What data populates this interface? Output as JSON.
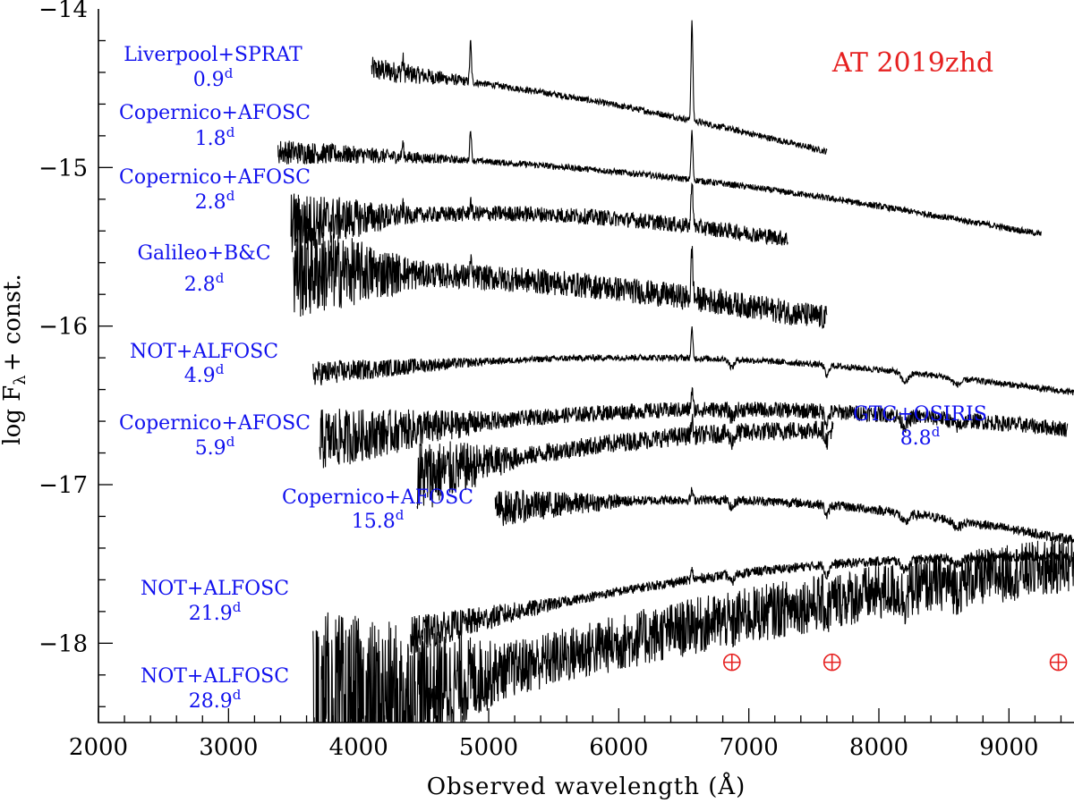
{
  "chart_data": {
    "type": "line",
    "title": "AT 2019zhd",
    "xlabel": "Observed wavelength (Å)",
    "ylabel": {
      "main": "log F",
      "sub": "λ",
      "tail": "+ const."
    },
    "xlim": [
      2000,
      9500
    ],
    "ylim": [
      -18.5,
      -14
    ],
    "x_ticks": [
      "2000",
      "3000",
      "4000",
      "5000",
      "6000",
      "7000",
      "8000",
      "9000"
    ],
    "x_tick_values": [
      2000,
      3000,
      4000,
      5000,
      6000,
      7000,
      8000,
      9000
    ],
    "y_ticks": [
      "−14",
      "−15",
      "−16",
      "−17",
      "−18"
    ],
    "y_tick_values": [
      -14,
      -15,
      -16,
      -17,
      -18
    ],
    "telluric_marker_x": [
      6870,
      7640,
      9380
    ],
    "telluric_marker_y": -18.12,
    "series": [
      {
        "instrument": "Liverpool+SPRAT",
        "epoch": "0.9",
        "unit": "d",
        "range": [
          4100,
          7600
        ],
        "start": -14.38,
        "end": -14.9,
        "shape": 0.15,
        "noise": 0.02,
        "halpha": 0.62,
        "hbeta": 0.25,
        "hgamma": 0.08
      },
      {
        "instrument": "Copernico+AFOSC",
        "epoch": "1.8",
        "unit": "d",
        "range": [
          3380,
          9250
        ],
        "start": -14.9,
        "end": -15.42,
        "shape": 0.3,
        "noise": 0.02,
        "halpha": 0.3,
        "hbeta": 0.2,
        "hgamma": 0.08
      },
      {
        "instrument": "Copernico+AFOSC",
        "epoch": "2.8",
        "unit": "d",
        "range": [
          3480,
          7300
        ],
        "start": -15.35,
        "end": -15.45,
        "shape": 0.3,
        "noise": 0.05,
        "halpha": 0.3,
        "hbeta": 0.08,
        "hgamma": 0.05
      },
      {
        "instrument": "Galileo+B&C",
        "epoch": "2.8",
        "unit": "d",
        "range": [
          3500,
          7600
        ],
        "start": -15.65,
        "end": -15.95,
        "shape": 0.2,
        "noise": 0.08,
        "halpha": 0.3,
        "hbeta": 0.08,
        "hgamma": 0.05
      },
      {
        "instrument": "NOT+ALFOSC",
        "epoch": "4.9",
        "unit": "d",
        "range": [
          3650,
          9500
        ],
        "start": -16.3,
        "end": -16.42,
        "shape": 0.45,
        "noise": 0.02,
        "halpha": 0.18,
        "hbeta": 0.0,
        "hgamma": 0.0
      },
      {
        "instrument": "Copernico+AFOSC",
        "epoch": "5.9",
        "unit": "d",
        "range": [
          3700,
          9450
        ],
        "start": -16.72,
        "end": -16.65,
        "shape": 0.45,
        "noise": 0.05,
        "halpha": 0.12,
        "hbeta": 0.0,
        "hgamma": 0.0
      },
      {
        "instrument": "GTC+OSIRIS",
        "epoch": "8.8",
        "unit": "d",
        "range": [
          4450,
          7650
        ],
        "start": -16.95,
        "end": -16.65,
        "shape": 0.2,
        "noise": 0.06,
        "halpha": 0.1,
        "hbeta": 0.0,
        "hgamma": 0.0
      },
      {
        "instrument": "Copernico+AFOSC",
        "epoch": "15.8",
        "unit": "d",
        "range": [
          5050,
          9500
        ],
        "start": -17.15,
        "end": -17.35,
        "shape": 0.4,
        "noise": 0.03,
        "halpha": 0.06,
        "hbeta": 0.0,
        "hgamma": 0.0
      },
      {
        "instrument": "NOT+ALFOSC",
        "epoch": "21.9",
        "unit": "d",
        "range": [
          4400,
          9450
        ],
        "start": -17.95,
        "end": -17.45,
        "shape": 0.4,
        "noise": 0.03,
        "halpha": 0.06,
        "hbeta": 0.0,
        "hgamma": 0.0
      },
      {
        "instrument": "NOT+ALFOSC",
        "epoch": "28.9",
        "unit": "d",
        "range": [
          3650,
          9500
        ],
        "start": -18.5,
        "end": -17.5,
        "shape": 0.3,
        "noise": 0.18,
        "halpha": 0.06,
        "hbeta": 0.0,
        "hgamma": 0.0
      }
    ]
  }
}
